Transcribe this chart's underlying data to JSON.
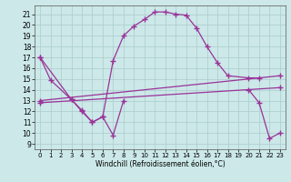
{
  "xlabel": "Windchill (Refroidissement éolien,°C)",
  "background_color": "#cce8e8",
  "grid_color": "#aacccc",
  "line_color": "#993399",
  "xlim": [
    -0.5,
    23.5
  ],
  "ylim": [
    8.5,
    21.8
  ],
  "yticks": [
    9,
    10,
    11,
    12,
    13,
    14,
    15,
    16,
    17,
    18,
    19,
    20,
    21
  ],
  "xticks": [
    0,
    1,
    2,
    3,
    4,
    5,
    6,
    7,
    8,
    9,
    10,
    11,
    12,
    13,
    14,
    15,
    16,
    17,
    18,
    19,
    20,
    21,
    22,
    23
  ],
  "line1_x": [
    0,
    1,
    3,
    4,
    5,
    6,
    7,
    8,
    20,
    21,
    22,
    23
  ],
  "line1_y": [
    17.0,
    14.9,
    13.1,
    12.1,
    11.0,
    11.5,
    9.8,
    13.0,
    14.0,
    12.8,
    9.5,
    10.0
  ],
  "line2_x": [
    0,
    3,
    4,
    5,
    6,
    7,
    8,
    9,
    10,
    11,
    12,
    13,
    14,
    15,
    16,
    17,
    18,
    20,
    21
  ],
  "line2_y": [
    17.0,
    13.1,
    12.0,
    11.0,
    11.5,
    16.7,
    19.0,
    19.9,
    20.5,
    21.2,
    21.2,
    21.0,
    20.9,
    19.7,
    18.0,
    16.5,
    15.3,
    15.1,
    15.1
  ],
  "line3_x": [
    0,
    23
  ],
  "line3_y": [
    13.0,
    15.3
  ],
  "line4_x": [
    0,
    23
  ],
  "line4_y": [
    12.8,
    14.2
  ]
}
